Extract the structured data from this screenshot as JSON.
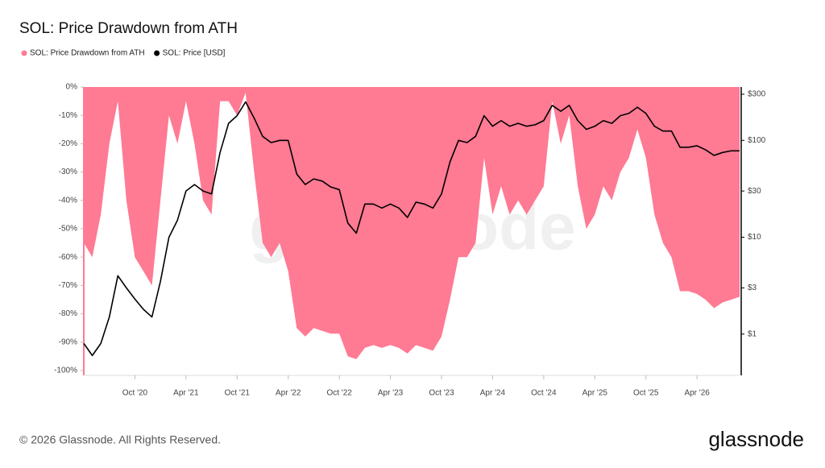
{
  "chart_data": {
    "type": "area_line",
    "title": "SOL: Price Drawdown from ATH",
    "watermark": "glassnode",
    "footer": "© 2026 Glassnode. All Rights Reserved.",
    "logo": "glassnode",
    "x": [
      "2020-04",
      "2020-05",
      "2020-06",
      "2020-07",
      "2020-08",
      "2020-09",
      "2020-10",
      "2020-11",
      "2020-12",
      "2021-01",
      "2021-02",
      "2021-03",
      "2021-04",
      "2021-05",
      "2021-06",
      "2021-07",
      "2021-08",
      "2021-09",
      "2021-10",
      "2021-11",
      "2021-12",
      "2022-01",
      "2022-02",
      "2022-03",
      "2022-04",
      "2022-05",
      "2022-06",
      "2022-07",
      "2022-08",
      "2022-09",
      "2022-10",
      "2022-11",
      "2022-12",
      "2023-01",
      "2023-02",
      "2023-03",
      "2023-04",
      "2023-05",
      "2023-06",
      "2023-07",
      "2023-08",
      "2023-09",
      "2023-10",
      "2023-11",
      "2023-12",
      "2024-01",
      "2024-02",
      "2024-03",
      "2024-04",
      "2024-05",
      "2024-06",
      "2024-07",
      "2024-08",
      "2024-09",
      "2024-10",
      "2024-11",
      "2024-12",
      "2025-01",
      "2025-02",
      "2025-03",
      "2025-04",
      "2025-05",
      "2025-06",
      "2025-07",
      "2025-08",
      "2025-09",
      "2025-10",
      "2025-11",
      "2025-12",
      "2026-01",
      "2026-02",
      "2026-03",
      "2026-04",
      "2026-05",
      "2026-06",
      "2026-07",
      "2026-08",
      "2026-09"
    ],
    "series": [
      {
        "name": "SOL: Price Drawdown from ATH",
        "color": "#ff7a93",
        "values": [
          -55,
          -60,
          -45,
          -20,
          -5,
          -40,
          -60,
          -65,
          -70,
          -40,
          -10,
          -20,
          -5,
          -20,
          -40,
          -45,
          -5,
          -5,
          -10,
          -2,
          -30,
          -55,
          -60,
          -55,
          -65,
          -85,
          -88,
          -85,
          -86,
          -87,
          -87,
          -95,
          -96,
          -92,
          -91,
          -92,
          -91,
          -92,
          -94,
          -91,
          -92,
          -93,
          -88,
          -75,
          -60,
          -60,
          -55,
          -25,
          -45,
          -35,
          -45,
          -40,
          -45,
          -40,
          -35,
          -5,
          -20,
          -10,
          -35,
          -50,
          -45,
          -35,
          -40,
          -30,
          -25,
          -15,
          -25,
          -45,
          -55,
          -60,
          -72,
          -72,
          -73,
          -75,
          -78,
          -76,
          -75,
          -74
        ]
      },
      {
        "name": "SOL: Price [USD]",
        "color": "#000000",
        "axis": "y2",
        "values": [
          0.8,
          0.6,
          0.8,
          1.5,
          4,
          3,
          2.3,
          1.8,
          1.5,
          3.5,
          10,
          15,
          30,
          35,
          30,
          28,
          75,
          150,
          180,
          250,
          170,
          110,
          95,
          100,
          100,
          45,
          35,
          40,
          38,
          33,
          31,
          14,
          11,
          22,
          22,
          20,
          22,
          20,
          16,
          23,
          22,
          20,
          28,
          60,
          100,
          95,
          110,
          180,
          140,
          160,
          140,
          150,
          140,
          145,
          160,
          230,
          200,
          230,
          160,
          130,
          140,
          160,
          150,
          180,
          190,
          220,
          190,
          140,
          125,
          125,
          85,
          85,
          88,
          80,
          70,
          75,
          78,
          78
        ]
      }
    ],
    "xlim": [
      "2020-04",
      "2026-09"
    ],
    "xticks": [
      {
        "value": "2020-10",
        "label": "Oct '20"
      },
      {
        "value": "2021-04",
        "label": "Apr '21"
      },
      {
        "value": "2021-10",
        "label": "Oct '21"
      },
      {
        "value": "2022-04",
        "label": "Apr '22"
      },
      {
        "value": "2022-10",
        "label": "Oct '22"
      },
      {
        "value": "2023-04",
        "label": "Apr '23"
      },
      {
        "value": "2023-10",
        "label": "Oct '23"
      },
      {
        "value": "2024-04",
        "label": "Apr '24"
      },
      {
        "value": "2024-10",
        "label": "Oct '24"
      },
      {
        "value": "2025-04",
        "label": "Apr '25"
      },
      {
        "value": "2025-10",
        "label": "Oct '25"
      },
      {
        "value": "2026-04",
        "label": "Apr '26"
      }
    ],
    "ylim": [
      -100,
      0
    ],
    "yticks": [
      {
        "value": 0,
        "label": "0%"
      },
      {
        "value": -10,
        "label": "-10%"
      },
      {
        "value": -20,
        "label": "-20%"
      },
      {
        "value": -30,
        "label": "-30%"
      },
      {
        "value": -40,
        "label": "-40%"
      },
      {
        "value": -50,
        "label": "-50%"
      },
      {
        "value": -60,
        "label": "-60%"
      },
      {
        "value": -70,
        "label": "-70%"
      },
      {
        "value": -80,
        "label": "-80%"
      },
      {
        "value": -90,
        "label": "-90%"
      },
      {
        "value": -100,
        "label": "-100%"
      }
    ],
    "y2lim": [
      0.42,
      356
    ],
    "y2log": true,
    "y2ticks": [
      {
        "value": 300,
        "label": "$300"
      },
      {
        "value": 100,
        "label": "$100"
      },
      {
        "value": 30,
        "label": "$30"
      },
      {
        "value": 10,
        "label": "$10"
      },
      {
        "value": 3,
        "label": "$3"
      },
      {
        "value": 1,
        "label": "$1"
      }
    ]
  }
}
